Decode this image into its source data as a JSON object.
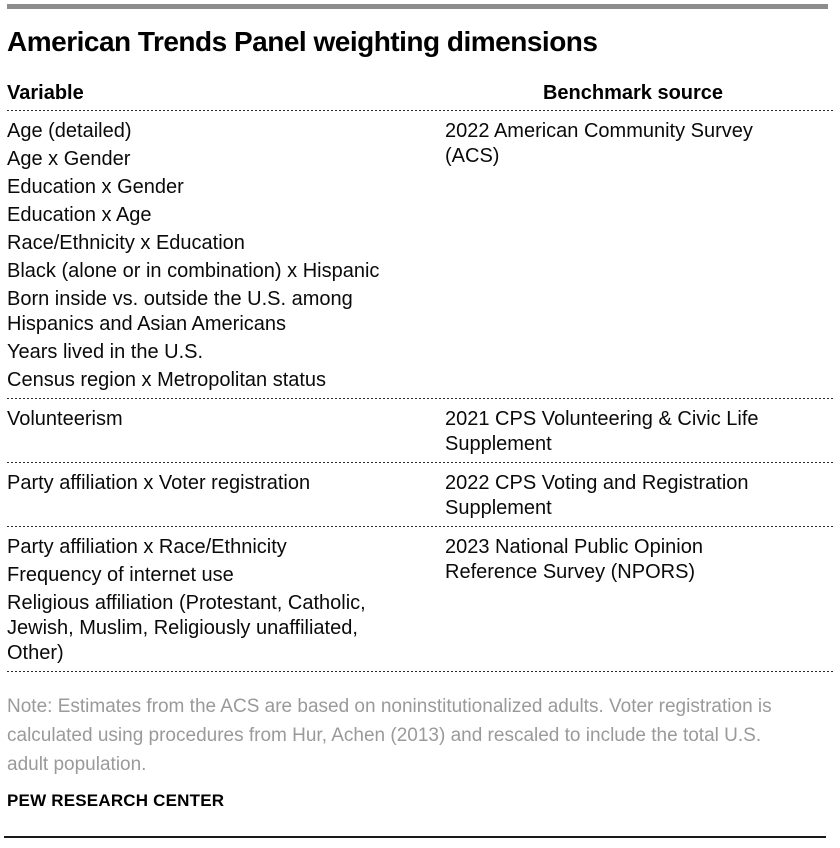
{
  "header": {
    "title": "American Trends Panel weighting dimensions"
  },
  "table": {
    "columns": {
      "variable": "Variable",
      "benchmark": "Benchmark source"
    },
    "rows": [
      {
        "variables": [
          "Age (detailed)",
          "Age x Gender",
          "Education x Gender",
          "Education x Age",
          "Race/Ethnicity x Education",
          "Black (alone or in combination) x Hispanic",
          "Born inside vs. outside the U.S. among\nHispanics and Asian Americans",
          "Years lived in the U.S.",
          "Census region x Metropolitan status"
        ],
        "benchmark": "2022 American Community Survey\n(ACS)"
      },
      {
        "variables": [
          "Volunteerism"
        ],
        "benchmark": "2021 CPS Volunteering & Civic Life\nSupplement"
      },
      {
        "variables": [
          "Party affiliation x Voter registration"
        ],
        "benchmark": "2022 CPS Voting and Registration\nSupplement"
      },
      {
        "variables": [
          "Party affiliation x Race/Ethnicity",
          "Frequency of internet use",
          "Religious affiliation (Protestant, Catholic,\nJewish, Muslim, Religiously unaffiliated,\nOther)"
        ],
        "benchmark": "2023 National Public Opinion\nReference Survey (NPORS)"
      }
    ]
  },
  "footer": {
    "note": "Note: Estimates from the ACS are based on noninstitutionalized adults. Voter registration is\ncalculated using procedures from Hur, Achen (2013) and rescaled to include the total U.S.\nadult population.",
    "source": "PEW RESEARCH CENTER"
  },
  "colors": {
    "accent_bar": "#8c8c8c",
    "body_text": "#000000",
    "note_text": "#9a9a9a",
    "divider": "#2b2b2b",
    "bottom_rule": "#1a1a1a"
  }
}
